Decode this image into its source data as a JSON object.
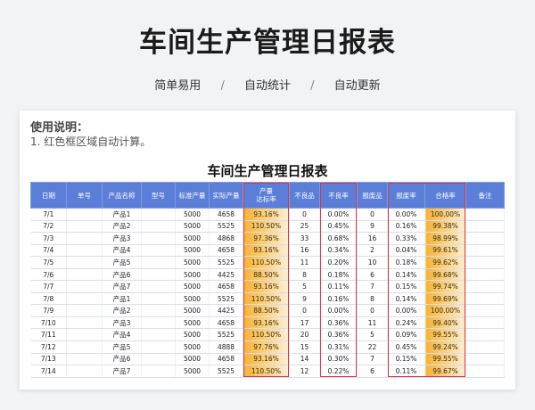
{
  "header": {
    "title": "车间生产管理日报表",
    "features": [
      "简单易用",
      "自动统计",
      "自动更新"
    ],
    "separator": "/"
  },
  "instructions": {
    "title": "使用说明：",
    "line1": "1. 红色框区域自动计算。"
  },
  "table": {
    "title": "车间生产管理日报表",
    "columns": [
      "日期",
      "单号",
      "产品名称",
      "型号",
      "标准产量",
      "实际产量",
      "产量\n达标率",
      "不良品",
      "不良率",
      "报废品",
      "报废率",
      "合格率",
      "备注"
    ],
    "rows": [
      {
        "date": "7/1",
        "order": "",
        "product": "产品1",
        "model": "",
        "std": "5000",
        "actual": "4658",
        "rate": "93.16%",
        "defect": "0",
        "defect_rate": "0.00%",
        "scrap": "0",
        "scrap_rate": "0.00%",
        "pass": "100.00%",
        "note": ""
      },
      {
        "date": "7/2",
        "order": "",
        "product": "产品2",
        "model": "",
        "std": "5000",
        "actual": "5525",
        "rate": "110.50%",
        "defect": "25",
        "defect_rate": "0.45%",
        "scrap": "9",
        "scrap_rate": "0.16%",
        "pass": "99.38%",
        "note": ""
      },
      {
        "date": "7/3",
        "order": "",
        "product": "产品3",
        "model": "",
        "std": "5000",
        "actual": "4868",
        "rate": "97.36%",
        "defect": "33",
        "defect_rate": "0.68%",
        "scrap": "16",
        "scrap_rate": "0.33%",
        "pass": "98.99%",
        "note": ""
      },
      {
        "date": "7/4",
        "order": "",
        "product": "产品4",
        "model": "",
        "std": "5000",
        "actual": "4658",
        "rate": "93.16%",
        "defect": "16",
        "defect_rate": "0.34%",
        "scrap": "2",
        "scrap_rate": "0.04%",
        "pass": "99.61%",
        "note": ""
      },
      {
        "date": "7/5",
        "order": "",
        "product": "产品5",
        "model": "",
        "std": "5000",
        "actual": "5525",
        "rate": "110.50%",
        "defect": "11",
        "defect_rate": "0.20%",
        "scrap": "10",
        "scrap_rate": "0.18%",
        "pass": "99.62%",
        "note": ""
      },
      {
        "date": "7/6",
        "order": "",
        "product": "产品6",
        "model": "",
        "std": "5000",
        "actual": "4425",
        "rate": "88.50%",
        "defect": "8",
        "defect_rate": "0.18%",
        "scrap": "6",
        "scrap_rate": "0.14%",
        "pass": "99.68%",
        "note": ""
      },
      {
        "date": "7/7",
        "order": "",
        "product": "产品7",
        "model": "",
        "std": "5000",
        "actual": "4658",
        "rate": "93.16%",
        "defect": "5",
        "defect_rate": "0.11%",
        "scrap": "7",
        "scrap_rate": "0.15%",
        "pass": "99.74%",
        "note": ""
      },
      {
        "date": "7/8",
        "order": "",
        "product": "产品1",
        "model": "",
        "std": "5000",
        "actual": "5525",
        "rate": "110.50%",
        "defect": "9",
        "defect_rate": "0.16%",
        "scrap": "8",
        "scrap_rate": "0.14%",
        "pass": "99.69%",
        "note": ""
      },
      {
        "date": "7/9",
        "order": "",
        "product": "产品2",
        "model": "",
        "std": "5000",
        "actual": "4425",
        "rate": "88.50%",
        "defect": "0",
        "defect_rate": "0.00%",
        "scrap": "0",
        "scrap_rate": "0.00%",
        "pass": "100.00%",
        "note": ""
      },
      {
        "date": "7/10",
        "order": "",
        "product": "产品3",
        "model": "",
        "std": "5000",
        "actual": "4658",
        "rate": "93.16%",
        "defect": "17",
        "defect_rate": "0.36%",
        "scrap": "11",
        "scrap_rate": "0.24%",
        "pass": "99.40%",
        "note": ""
      },
      {
        "date": "7/11",
        "order": "",
        "product": "产品4",
        "model": "",
        "std": "5000",
        "actual": "5525",
        "rate": "110.50%",
        "defect": "20",
        "defect_rate": "0.36%",
        "scrap": "5",
        "scrap_rate": "0.09%",
        "pass": "99.55%",
        "note": ""
      },
      {
        "date": "7/12",
        "order": "",
        "product": "产品5",
        "model": "",
        "std": "5000",
        "actual": "4888",
        "rate": "97.76%",
        "defect": "15",
        "defect_rate": "0.31%",
        "scrap": "22",
        "scrap_rate": "0.45%",
        "pass": "99.24%",
        "note": ""
      },
      {
        "date": "7/13",
        "order": "",
        "product": "产品6",
        "model": "",
        "std": "5000",
        "actual": "4658",
        "rate": "93.16%",
        "defect": "14",
        "defect_rate": "0.30%",
        "scrap": "7",
        "scrap_rate": "0.15%",
        "pass": "99.55%",
        "note": ""
      },
      {
        "date": "7/14",
        "order": "",
        "product": "产品7",
        "model": "",
        "std": "5000",
        "actual": "5525",
        "rate": "110.50%",
        "defect": "12",
        "defect_rate": "0.22%",
        "scrap": "6",
        "scrap_rate": "0.11%",
        "pass": "99.67%",
        "note": ""
      }
    ]
  },
  "colors": {
    "header_bg": "#5b7fd9",
    "highlight_gradient_start": "#f6b234",
    "auto_calc_border": "#e0343c",
    "page_bg": "#f2f3f5"
  }
}
